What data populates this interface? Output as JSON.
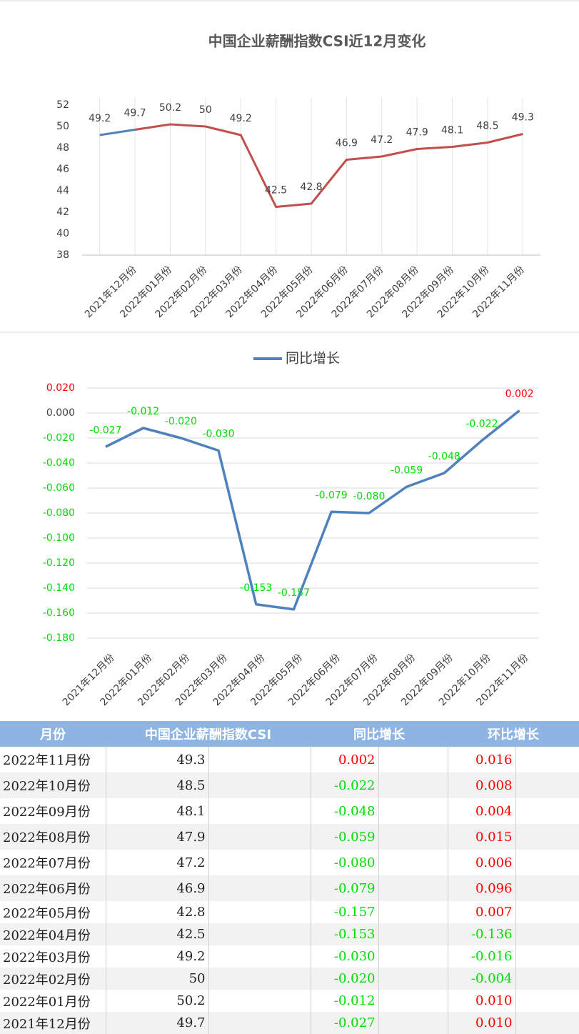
{
  "chart_data": [
    {
      "type": "line",
      "title": "中国企业薪酬指数CSI近12月变化",
      "categories": [
        null,
        "2021年12月份",
        "2022年01月份",
        "2022年02月份",
        "2022年03月份",
        "2022年04月份",
        "2022年05月份",
        "2022年06月份",
        "2022年07月份",
        "2022年08月份",
        "2022年09月份",
        "2022年10月份",
        "2022年11月份"
      ],
      "values": [
        49.2,
        49.7,
        50.2,
        50,
        49.2,
        42.5,
        42.8,
        46.9,
        47.2,
        47.9,
        48.1,
        48.5,
        49.3
      ],
      "color": "#c0504d",
      "first_segment_color": "#4f81bd",
      "ylim": [
        38,
        52
      ],
      "yticks": [
        38,
        40,
        42,
        44,
        46,
        48,
        50,
        52
      ],
      "grid": "vertical"
    },
    {
      "type": "line",
      "categories": [
        "2021年12月份",
        "2022年01月份",
        "2022年02月份",
        "2022年03月份",
        "2022年04月份",
        "2022年05月份",
        "2022年06月份",
        "2022年07月份",
        "2022年08月份",
        "2022年09月份",
        "2022年10月份",
        "2022年11月份"
      ],
      "series": [
        {
          "name": "同比增长",
          "color": "#4f81bd",
          "values": [
            -0.027,
            -0.012,
            -0.02,
            -0.03,
            -0.153,
            -0.157,
            -0.079,
            -0.08,
            -0.059,
            -0.048,
            -0.022,
            0.002
          ],
          "value_labels": [
            "-0.027",
            "-0.012",
            "-0.020",
            "-0.030",
            "-0.153",
            "-0.157",
            "-0.079",
            "-0.080",
            "-0.059",
            "-0.048",
            "-0.022",
            "0.002"
          ]
        }
      ],
      "ylim": [
        -0.18,
        0.02
      ],
      "yticks": [
        {
          "value": 0.02,
          "label": "0.020"
        },
        {
          "value": 0,
          "label": "0.000"
        },
        {
          "value": -0.02,
          "label": "-0.020"
        },
        {
          "value": -0.04,
          "label": "-0.040"
        },
        {
          "value": -0.06,
          "label": "-0.060"
        },
        {
          "value": -0.08,
          "label": "-0.080"
        },
        {
          "value": -0.1,
          "label": "-0.100"
        },
        {
          "value": -0.12,
          "label": "-0.120"
        },
        {
          "value": -0.14,
          "label": "-0.140"
        },
        {
          "value": -0.16,
          "label": "-0.160"
        },
        {
          "value": -0.18,
          "label": "-0.180"
        }
      ],
      "grid": "horizontal",
      "legend": "top",
      "positive_color": "#ff0000",
      "negative_color": "#00dd00"
    }
  ],
  "table": {
    "header": [
      "月份",
      "中国企业薪酬指数CSI",
      "同比增长",
      "环比增长"
    ],
    "rows": [
      [
        "2022年11月份",
        "49.3",
        "0.002",
        "0.016"
      ],
      [
        "2022年10月份",
        "48.5",
        "-0.022",
        "0.008"
      ],
      [
        "2022年09月份",
        "48.1",
        "-0.048",
        "0.004"
      ],
      [
        "2022年08月份",
        "47.9",
        "-0.059",
        "0.015"
      ],
      [
        "2022年07月份",
        "47.2",
        "-0.080",
        "0.006"
      ],
      [
        "2022年06月份",
        "46.9",
        "-0.079",
        "0.096"
      ],
      [
        "2022年05月份",
        "42.8",
        "-0.157",
        "0.007"
      ],
      [
        "2022年04月份",
        "42.5",
        "-0.153",
        "-0.136"
      ],
      [
        "2022年03月份",
        "49.2",
        "-0.030",
        "-0.016"
      ],
      [
        "2022年02月份",
        "50",
        "-0.020",
        "-0.004"
      ],
      [
        "2022年01月份",
        "50.2",
        "-0.012",
        "0.010"
      ],
      [
        "2021年12月份",
        "49.7",
        "-0.027",
        "0.010"
      ]
    ]
  }
}
